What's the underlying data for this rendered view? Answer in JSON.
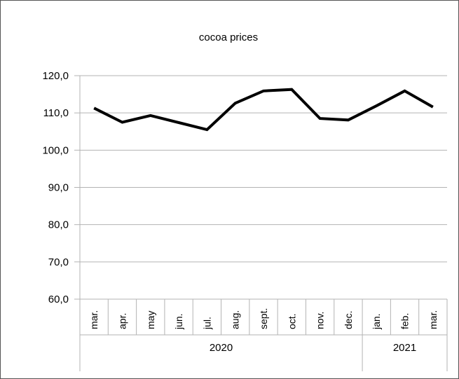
{
  "chart_data": {
    "type": "line",
    "title": "cocoa prices",
    "xlabel": "",
    "ylabel": "",
    "ylim": [
      60,
      120
    ],
    "yticks": [
      60,
      70,
      80,
      90,
      100,
      110,
      120
    ],
    "ytick_labels": [
      "60,0",
      "70,0",
      "80,0",
      "90,0",
      "100,0",
      "110,0",
      "120,0"
    ],
    "categories": [
      "mar.",
      "apr.",
      "may",
      "jun.",
      "jul.",
      "aug.",
      "sept.",
      "oct.",
      "nov.",
      "dec.",
      "jan.",
      "feb.",
      "mar."
    ],
    "year_groups": [
      {
        "label": "2020",
        "count": 10
      },
      {
        "label": "2021",
        "count": 3
      }
    ],
    "series": [
      {
        "values": [
          111.3,
          107.5,
          109.3,
          107.4,
          105.5,
          112.6,
          115.9,
          116.3,
          108.5,
          108.1,
          111.9,
          115.9,
          111.6
        ],
        "color": "#000000"
      }
    ],
    "grid": true,
    "legend": "none"
  }
}
